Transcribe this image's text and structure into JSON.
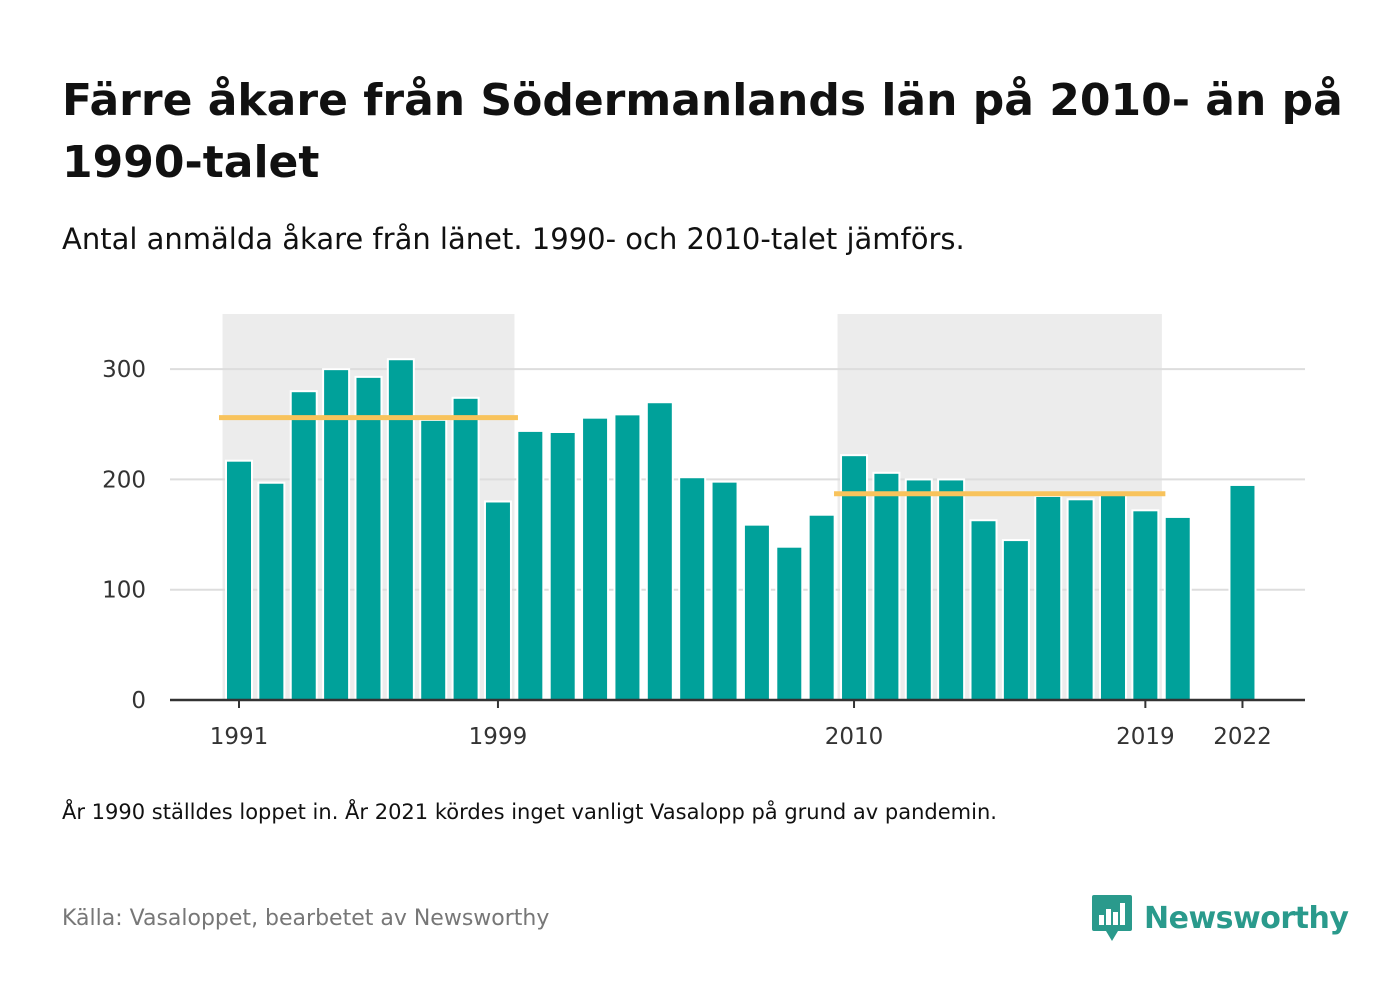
{
  "title": "Färre åkare från Södermanlands län på 2010- än på 1990-talet",
  "subtitle": "Antal anmälda åkare från länet. 1990- och 2010-talet jämförs.",
  "note": "År 1990 ställdes loppet in. År 2021 kördes inget vanligt Vasalopp på grund av pandemin.",
  "source": "Källa: Vasaloppet, bearbetet av Newsworthy",
  "brand": {
    "name": "Newsworthy",
    "icon": "newsworthy-logo-icon"
  },
  "colors": {
    "bar": "#00a19a",
    "average": "#f8c35c",
    "highlight": "#ececec",
    "grid": "#dddddd",
    "axis": "#333333"
  },
  "chart_data": {
    "type": "bar",
    "x": [
      1991,
      1992,
      1993,
      1994,
      1995,
      1996,
      1997,
      1998,
      1999,
      2000,
      2001,
      2002,
      2003,
      2004,
      2005,
      2006,
      2007,
      2008,
      2009,
      2010,
      2011,
      2012,
      2013,
      2014,
      2015,
      2016,
      2017,
      2018,
      2019,
      2020,
      2021,
      2022
    ],
    "values": [
      217,
      197,
      280,
      300,
      293,
      309,
      254,
      274,
      180,
      244,
      243,
      256,
      259,
      270,
      202,
      198,
      159,
      139,
      168,
      222,
      206,
      200,
      200,
      163,
      145,
      185,
      182,
      188,
      172,
      166,
      null,
      195
    ],
    "x_tick_labels": [
      "1991",
      "1999",
      "2010",
      "2019",
      "2022"
    ],
    "y_ticks": [
      0,
      100,
      200,
      300
    ],
    "ylim": [
      0,
      350
    ],
    "highlight_periods": [
      {
        "from": 1991,
        "to": 1999,
        "average": 256
      },
      {
        "from": 2010,
        "to": 2019,
        "average": 187
      }
    ],
    "grid": true,
    "legend": "none"
  }
}
